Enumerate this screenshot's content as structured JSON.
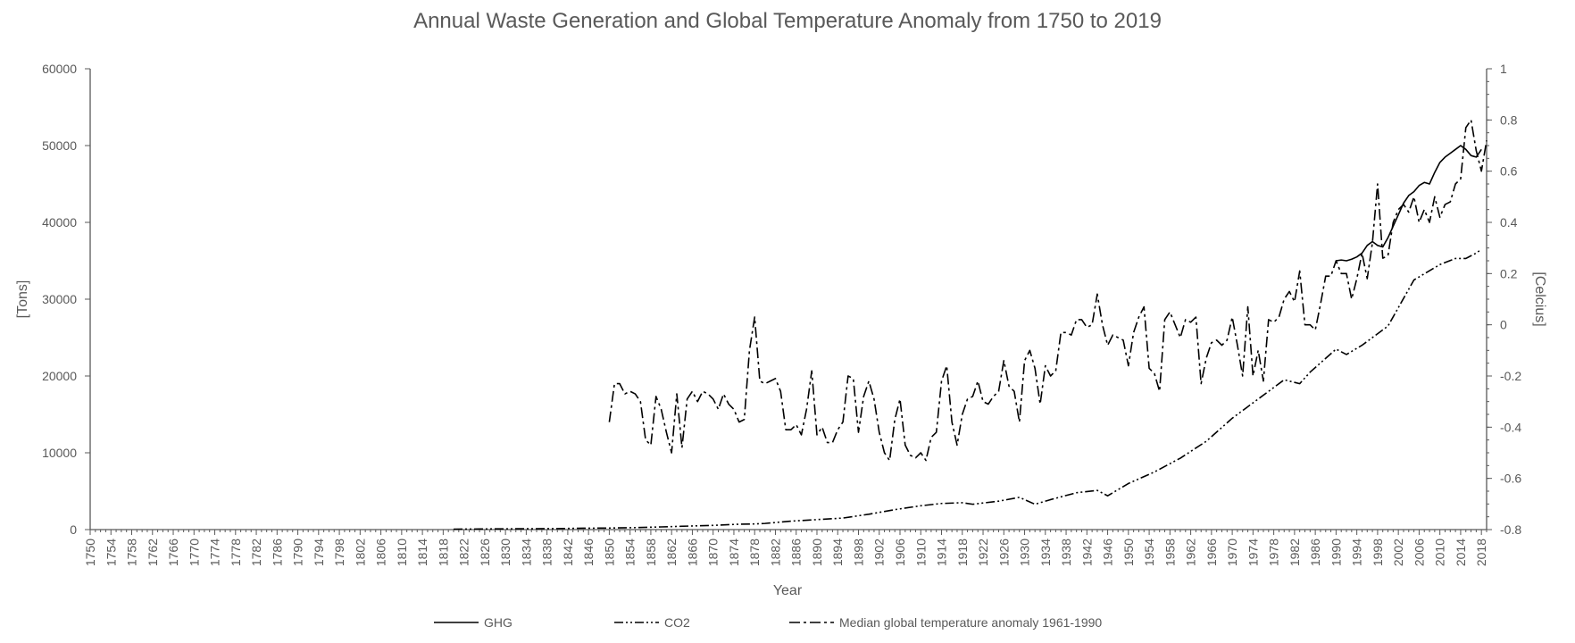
{
  "chart_data": {
    "type": "line",
    "title": "Annual Waste Generation and Global Temperature Anomaly from 1750 to 2019",
    "xlabel": "Year",
    "ylabel_left": "[Tons]",
    "ylabel_right": "[Celcius]",
    "xlim": [
      1750,
      2019
    ],
    "ylim_left": [
      0,
      60000
    ],
    "ylim_right": [
      -0.8,
      1
    ],
    "y_ticks_left": [
      "0",
      "10000",
      "20000",
      "30000",
      "40000",
      "50000",
      "60000"
    ],
    "y_ticks_right": [
      "-0.8",
      "-0.6",
      "-0.4",
      "-0.2",
      "0",
      "0.2",
      "0.4",
      "0.6",
      "0.8",
      "1"
    ],
    "x_tick_start": 1750,
    "x_tick_step": 4,
    "x_tick_end": 2018,
    "grid": false,
    "legend_position": "bottom",
    "colors": {
      "line": "#000000",
      "axis": "#595959",
      "text": "#595959"
    },
    "series": [
      {
        "name": "GHG",
        "axis": "left",
        "dash": "solid",
        "x": [
          1990,
          1991,
          1992,
          1993,
          1994,
          1995,
          1996,
          1997,
          1998,
          1999,
          2000,
          2001,
          2002,
          2003,
          2004,
          2005,
          2006,
          2007,
          2008,
          2009,
          2010,
          2011,
          2012,
          2013,
          2014,
          2015,
          2016,
          2017,
          2018
        ],
        "y": [
          35000,
          35100,
          35000,
          35200,
          35500,
          36000,
          37000,
          37500,
          37000,
          36800,
          38000,
          39500,
          41000,
          42500,
          43500,
          44000,
          44800,
          45200,
          45000,
          46500,
          47800,
          48500,
          49000,
          49500,
          50000,
          49500,
          48700,
          48500,
          49500
        ]
      },
      {
        "name": "CO2",
        "axis": "left",
        "dash": "dash-dot-dot",
        "x": [
          1820,
          1825,
          1830,
          1835,
          1840,
          1845,
          1850,
          1855,
          1860,
          1865,
          1870,
          1875,
          1878,
          1880,
          1885,
          1890,
          1895,
          1900,
          1905,
          1910,
          1914,
          1918,
          1920,
          1925,
          1929,
          1932,
          1935,
          1940,
          1944,
          1946,
          1950,
          1955,
          1960,
          1965,
          1970,
          1975,
          1980,
          1983,
          1985,
          1990,
          1992,
          1995,
          2000,
          2005,
          2010,
          2013,
          2015,
          2017,
          2018
        ],
        "y": [
          50,
          80,
          100,
          110,
          130,
          180,
          200,
          260,
          350,
          450,
          550,
          700,
          730,
          800,
          1100,
          1300,
          1500,
          2000,
          2600,
          3100,
          3400,
          3500,
          3300,
          3700,
          4200,
          3300,
          3900,
          4800,
          5100,
          4400,
          6000,
          7500,
          9300,
          11500,
          14500,
          17000,
          19500,
          19000,
          20500,
          23500,
          22800,
          24000,
          26500,
          32500,
          34500,
          35300,
          35300,
          36000,
          36500
        ]
      },
      {
        "name": "Median global temperature anomaly 1961-1990",
        "axis": "right",
        "dash": "dash-dot",
        "x": [
          1850,
          1851,
          1852,
          1853,
          1854,
          1855,
          1856,
          1857,
          1858,
          1859,
          1860,
          1861,
          1862,
          1863,
          1864,
          1865,
          1866,
          1867,
          1868,
          1869,
          1870,
          1871,
          1872,
          1873,
          1874,
          1875,
          1876,
          1877,
          1878,
          1879,
          1880,
          1881,
          1882,
          1883,
          1884,
          1885,
          1886,
          1887,
          1888,
          1889,
          1890,
          1891,
          1892,
          1893,
          1894,
          1895,
          1896,
          1897,
          1898,
          1899,
          1900,
          1901,
          1902,
          1903,
          1904,
          1905,
          1906,
          1907,
          1908,
          1909,
          1910,
          1911,
          1912,
          1913,
          1914,
          1915,
          1916,
          1917,
          1918,
          1919,
          1920,
          1921,
          1922,
          1923,
          1924,
          1925,
          1926,
          1927,
          1928,
          1929,
          1930,
          1931,
          1932,
          1933,
          1934,
          1935,
          1936,
          1937,
          1938,
          1939,
          1940,
          1941,
          1942,
          1943,
          1944,
          1945,
          1946,
          1947,
          1948,
          1949,
          1950,
          1951,
          1952,
          1953,
          1954,
          1955,
          1956,
          1957,
          1958,
          1959,
          1960,
          1961,
          1962,
          1963,
          1964,
          1965,
          1966,
          1967,
          1968,
          1969,
          1970,
          1971,
          1972,
          1973,
          1974,
          1975,
          1976,
          1977,
          1978,
          1979,
          1980,
          1981,
          1982,
          1983,
          1984,
          1985,
          1986,
          1987,
          1988,
          1989,
          1990,
          1991,
          1992,
          1993,
          1994,
          1995,
          1996,
          1997,
          1998,
          1999,
          2000,
          2001,
          2002,
          2003,
          2004,
          2005,
          2006,
          2007,
          2008,
          2009,
          2010,
          2011,
          2012,
          2013,
          2014,
          2015,
          2016,
          2017,
          2018,
          2019
        ],
        "y": [
          -0.38,
          -0.23,
          -0.23,
          -0.27,
          -0.26,
          -0.27,
          -0.3,
          -0.45,
          -0.47,
          -0.28,
          -0.33,
          -0.42,
          -0.5,
          -0.27,
          -0.48,
          -0.29,
          -0.26,
          -0.3,
          -0.26,
          -0.27,
          -0.29,
          -0.33,
          -0.27,
          -0.31,
          -0.33,
          -0.38,
          -0.37,
          -0.1,
          0.03,
          -0.22,
          -0.23,
          -0.22,
          -0.21,
          -0.26,
          -0.41,
          -0.41,
          -0.39,
          -0.43,
          -0.33,
          -0.18,
          -0.43,
          -0.4,
          -0.46,
          -0.46,
          -0.41,
          -0.38,
          -0.2,
          -0.21,
          -0.42,
          -0.28,
          -0.22,
          -0.29,
          -0.42,
          -0.5,
          -0.53,
          -0.37,
          -0.29,
          -0.47,
          -0.51,
          -0.52,
          -0.5,
          -0.53,
          -0.44,
          -0.42,
          -0.22,
          -0.16,
          -0.38,
          -0.47,
          -0.35,
          -0.29,
          -0.28,
          -0.22,
          -0.3,
          -0.31,
          -0.28,
          -0.26,
          -0.14,
          -0.24,
          -0.26,
          -0.38,
          -0.14,
          -0.1,
          -0.17,
          -0.31,
          -0.16,
          -0.2,
          -0.18,
          -0.03,
          -0.03,
          -0.04,
          0.02,
          0.02,
          -0.01,
          0.0,
          0.12,
          0.0,
          -0.08,
          -0.04,
          -0.05,
          -0.06,
          -0.16,
          -0.03,
          0.03,
          0.07,
          -0.17,
          -0.19,
          -0.26,
          0.02,
          0.05,
          0.0,
          -0.05,
          0.02,
          0.01,
          0.03,
          -0.23,
          -0.13,
          -0.07,
          -0.06,
          -0.08,
          -0.06,
          0.03,
          -0.08,
          -0.2,
          0.07,
          -0.2,
          -0.1,
          -0.22,
          0.02,
          0.01,
          0.03,
          0.1,
          0.13,
          0.09,
          0.21,
          0.0,
          0.0,
          -0.02,
          0.08,
          0.19,
          0.19,
          0.25,
          0.2,
          0.2,
          0.1,
          0.18,
          0.28,
          0.18,
          0.32,
          0.55,
          0.26,
          0.27,
          0.4,
          0.45,
          0.47,
          0.44,
          0.5,
          0.4,
          0.45,
          0.4,
          0.5,
          0.42,
          0.47,
          0.48,
          0.55,
          0.57,
          0.77,
          0.8,
          0.68,
          0.6,
          0.72
        ]
      }
    ]
  }
}
